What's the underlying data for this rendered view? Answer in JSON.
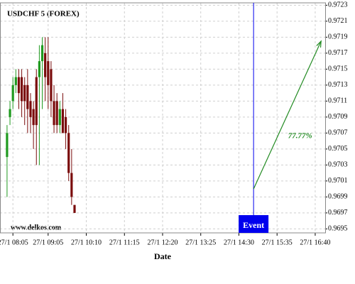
{
  "chart_data": {
    "type": "candlestick",
    "title": "USDCHF 5 (FOREX)",
    "watermark": "www.delkos.com",
    "x_label": "Date",
    "xlim": [
      "27/1 07:43",
      "27/1 16:57"
    ],
    "xticks": [
      "27/1 08:05",
      "27/1 09:05",
      "27/1 10:10",
      "27/1 11:15",
      "27/1 12:20",
      "27/1 13:25",
      "27/1 14:30",
      "27/1 15:35",
      "27/1 16:40"
    ],
    "ylim": [
      0.96945,
      0.97233
    ],
    "yticks": [
      0.9695,
      0.9697,
      0.9699,
      0.9701,
      0.9703,
      0.9705,
      0.9707,
      0.9709,
      0.9711,
      0.9713,
      0.9715,
      0.9717,
      0.9719,
      0.9721,
      0.9723
    ],
    "grid": true,
    "up_color": "#1f9a1f",
    "down_color": "#7a0c0c",
    "x": [
      "27/1 07:55",
      "27/1 08:00",
      "27/1 08:05",
      "27/1 08:10",
      "27/1 08:15",
      "27/1 08:20",
      "27/1 08:25",
      "27/1 08:30",
      "27/1 08:35",
      "27/1 08:40",
      "27/1 08:45",
      "27/1 08:50",
      "27/1 08:55",
      "27/1 09:00",
      "27/1 09:05",
      "27/1 09:10",
      "27/1 09:15",
      "27/1 09:20",
      "27/1 09:25",
      "27/1 09:30",
      "27/1 09:35",
      "27/1 09:40",
      "27/1 09:45",
      "27/1 09:50"
    ],
    "open": [
      0.9704,
      0.9709,
      0.9711,
      0.9713,
      0.9714,
      0.9714,
      0.9713,
      0.9713,
      0.9711,
      0.971,
      0.9714,
      0.9714,
      0.9716,
      0.9717,
      0.9716,
      0.9715,
      0.9711,
      0.9711,
      0.9708,
      0.971,
      0.9709,
      0.9707,
      0.9702,
      0.9698
    ],
    "high": [
      0.9708,
      0.9711,
      0.9714,
      0.9715,
      0.9715,
      0.9715,
      0.9714,
      0.9715,
      0.9712,
      0.9711,
      0.9715,
      0.9718,
      0.9719,
      0.9719,
      0.9719,
      0.9716,
      0.9713,
      0.9712,
      0.9711,
      0.9712,
      0.971,
      0.9708,
      0.9705,
      0.9698
    ],
    "low": [
      0.9699,
      0.9708,
      0.971,
      0.9712,
      0.971,
      0.9709,
      0.9708,
      0.9707,
      0.9707,
      0.9705,
      0.9703,
      0.9703,
      0.971,
      0.9711,
      0.971,
      0.9709,
      0.9707,
      0.9707,
      0.9707,
      0.9707,
      0.9705,
      0.9701,
      0.9698,
      0.9697
    ],
    "close": [
      0.9707,
      0.971,
      0.9713,
      0.9714,
      0.9712,
      0.9711,
      0.9711,
      0.971,
      0.9709,
      0.9708,
      0.9708,
      0.9716,
      0.9718,
      0.9714,
      0.9713,
      0.9711,
      0.9708,
      0.9708,
      0.971,
      0.9707,
      0.9707,
      0.9702,
      0.9699,
      0.9697
    ],
    "event": {
      "x": "27/1 14:55",
      "label": "Event",
      "color": "#0000ee"
    },
    "arrow": {
      "x": [
        "27/1 14:55",
        "27/1 16:50"
      ],
      "y": [
        0.97,
        0.97185
      ],
      "label": "77.77%",
      "color": "#228b22"
    }
  }
}
